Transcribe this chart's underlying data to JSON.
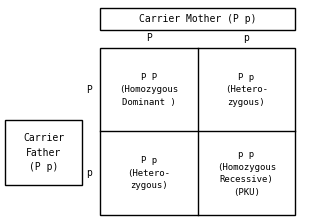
{
  "title": "Carrier Mother (P p)",
  "father_label": "Carrier\nFather\n(P p)",
  "col_headers": [
    "P",
    "p"
  ],
  "row_headers": [
    "P",
    "p"
  ],
  "cells": [
    [
      "P P\n(Homozygous\nDominant )",
      "P p\n(Hetero-\nzygous)"
    ],
    [
      "P p\n(Hetero-\nzygous)",
      "p p\n(Homozygous\nRecessive)\n(PKU)"
    ]
  ],
  "bg_color": "#ffffff",
  "box_color": "#000000",
  "font_family": "monospace",
  "font_size": 6.5,
  "title_font_size": 7,
  "header_font_size": 7
}
